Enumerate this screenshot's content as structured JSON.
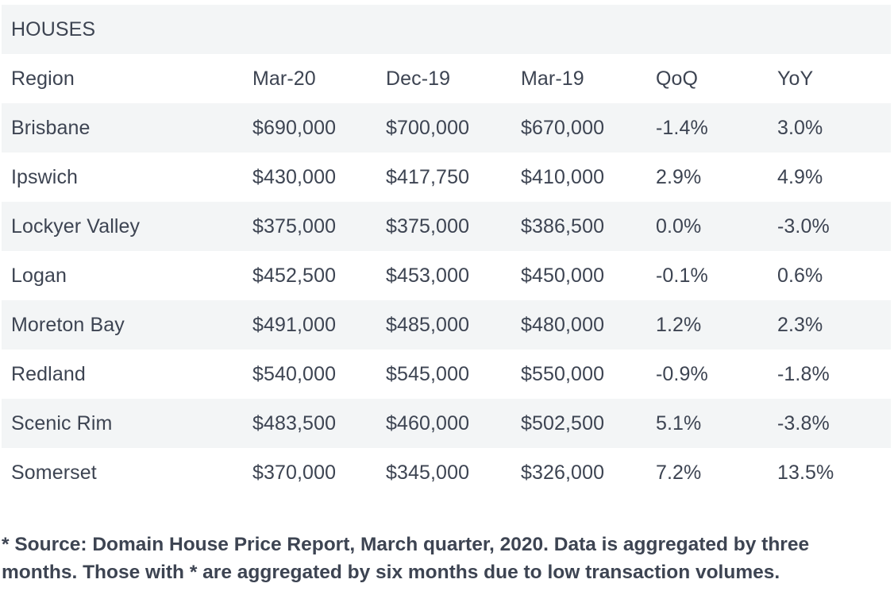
{
  "table": {
    "title": "HOUSES",
    "headers": [
      "Region",
      "Mar-20",
      "Dec-19",
      "Mar-19",
      "QoQ",
      "YoY"
    ],
    "rows": [
      [
        "Brisbane",
        "$690,000",
        "$700,000",
        "$670,000",
        "-1.4%",
        "3.0%"
      ],
      [
        "Ipswich",
        "$430,000",
        "$417,750",
        "$410,000",
        "2.9%",
        "4.9%"
      ],
      [
        "Lockyer Valley",
        "$375,000",
        "$375,000",
        "$386,500",
        "0.0%",
        "-3.0%"
      ],
      [
        "Logan",
        "$452,500",
        "$453,000",
        "$450,000",
        "-0.1%",
        "0.6%"
      ],
      [
        "Moreton Bay",
        "$491,000",
        "$485,000",
        "$480,000",
        "1.2%",
        "2.3%"
      ],
      [
        "Redland",
        "$540,000",
        "$545,000",
        "$550,000",
        "-0.9%",
        "-1.8%"
      ],
      [
        "Scenic Rim",
        "$483,500",
        "$460,000",
        "$502,500",
        "5.1%",
        "-3.8%"
      ],
      [
        "Somerset",
        "$370,000",
        "$345,000",
        "$326,000",
        "7.2%",
        "13.5%"
      ]
    ]
  },
  "footnote": "* Source: Domain House Price Report, March quarter, 2020. Data is aggregated by three months. Those with * are aggregated by six months due to low transaction volumes.",
  "colors": {
    "text": "#3d4452",
    "shade": "#f3f5f6",
    "background": "#ffffff"
  }
}
